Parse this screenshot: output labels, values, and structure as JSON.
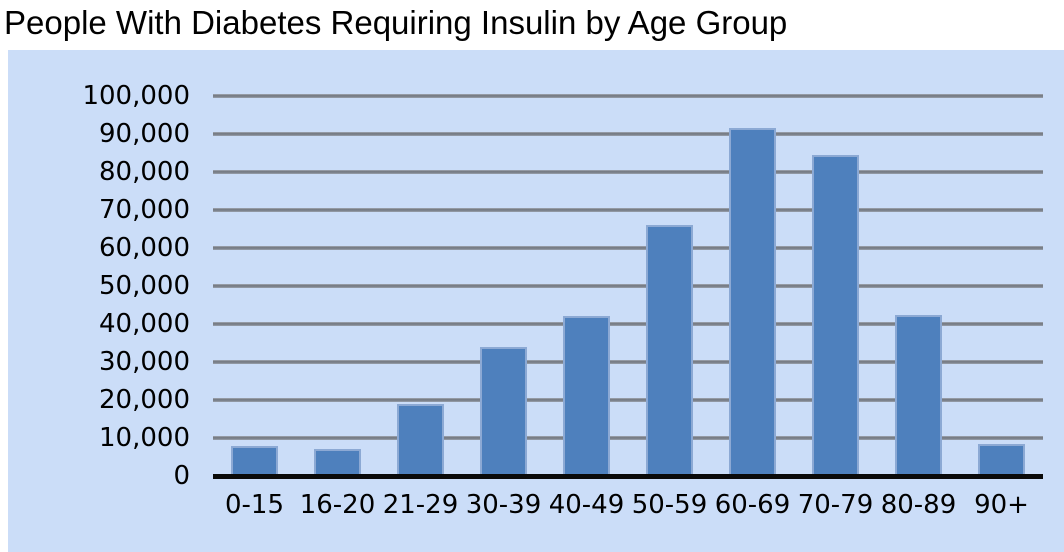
{
  "page": {
    "title": "People With Diabetes Requiring Insulin by Age Group"
  },
  "chart_data": {
    "type": "bar",
    "title": "People With Diabetes Requiring Insulin by Age Group",
    "categories": [
      "0-15",
      "16-20",
      "21-29",
      "30-39",
      "40-49",
      "50-59",
      "60-69",
      "70-79",
      "80-89",
      "90+"
    ],
    "values": [
      8000,
      7000,
      19000,
      34000,
      42000,
      66000,
      91500,
      84500,
      42500,
      8500
    ],
    "xlabel": "",
    "ylabel": "",
    "ylim": [
      0,
      100000
    ],
    "ytick_step": 10000,
    "ytick_labels": [
      "0",
      "10,000",
      "20,000",
      "30,000",
      "40,000",
      "50,000",
      "60,000",
      "70,000",
      "80,000",
      "90,000",
      "100,000"
    ],
    "grid": "horizontal",
    "legend": "none",
    "colors": {
      "panel_background": "#CBDDF8",
      "bar_fill": "#4E80BD",
      "bar_highlight": "#8CA9D4",
      "gridline": "#6F747C",
      "axis_line": "#0A0A0A",
      "text": "#000000"
    }
  }
}
